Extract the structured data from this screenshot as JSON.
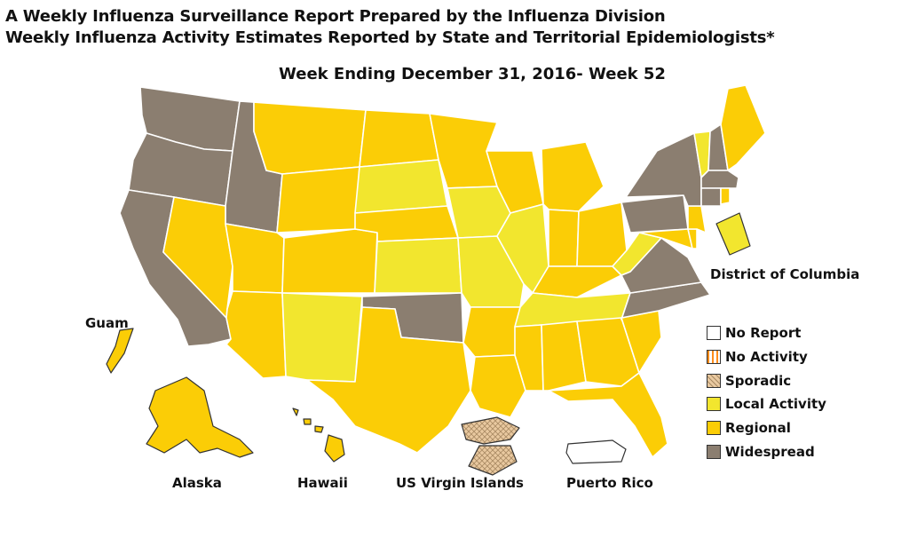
{
  "header": {
    "title_line1": "A Weekly Influenza Surveillance Report Prepared by the Influenza Division",
    "title_line2": "Weekly Influenza Activity Estimates Reported by State and Territorial Epidemiologists*",
    "subtitle": "Week Ending December 31, 2016- Week 52"
  },
  "colors": {
    "no_report": "#ffffff",
    "no_activity": "#ff8c1a",
    "sporadic": "#e9c9a0",
    "local_activity": "#f2e62e",
    "regional": "#fbcd06",
    "widespread": "#8b7e70",
    "border": "#ffffff",
    "outline": "#333333"
  },
  "legend": [
    {
      "key": "no_report",
      "label": "No Report"
    },
    {
      "key": "no_activity",
      "label": "No Activity"
    },
    {
      "key": "sporadic",
      "label": "Sporadic"
    },
    {
      "key": "local_activity",
      "label": "Local Activity"
    },
    {
      "key": "regional",
      "label": "Regional"
    },
    {
      "key": "widespread",
      "label": "Widespread"
    }
  ],
  "labels": {
    "dc": "District of Columbia",
    "guam": "Guam",
    "alaska": "Alaska",
    "hawaii": "Hawaii",
    "usvi": "US Virgin Islands",
    "puerto_rico": "Puerto Rico"
  },
  "activity": {
    "WA": "widespread",
    "OR": "widespread",
    "CA": "widespread",
    "ID": "widespread",
    "NV": "regional",
    "AZ": "regional",
    "UT": "regional",
    "MT": "regional",
    "WY": "regional",
    "CO": "regional",
    "NM": "local_activity",
    "ND": "regional",
    "SD": "local_activity",
    "NE": "regional",
    "KS": "local_activity",
    "OK": "widespread",
    "TX": "regional",
    "MN": "regional",
    "IA": "local_activity",
    "MO": "local_activity",
    "AR": "regional",
    "LA": "regional",
    "WI": "regional",
    "IL": "local_activity",
    "MI": "regional",
    "IN": "regional",
    "OH": "regional",
    "KY": "regional",
    "TN": "local_activity",
    "MS": "regional",
    "AL": "regional",
    "GA": "regional",
    "FL": "regional",
    "SC": "regional",
    "NC": "widespread",
    "VA": "widespread",
    "WV": "local_activity",
    "MD": "regional",
    "DE": "regional",
    "NJ": "regional",
    "PA": "widespread",
    "NY": "widespread",
    "VT": "local_activity",
    "NH": "widespread",
    "ME": "regional",
    "MA": "widespread",
    "CT": "widespread",
    "RI": "regional",
    "DC": "local_activity",
    "AK": "regional",
    "HI": "regional",
    "GU": "regional",
    "VI": "sporadic",
    "PR": "no_report"
  }
}
